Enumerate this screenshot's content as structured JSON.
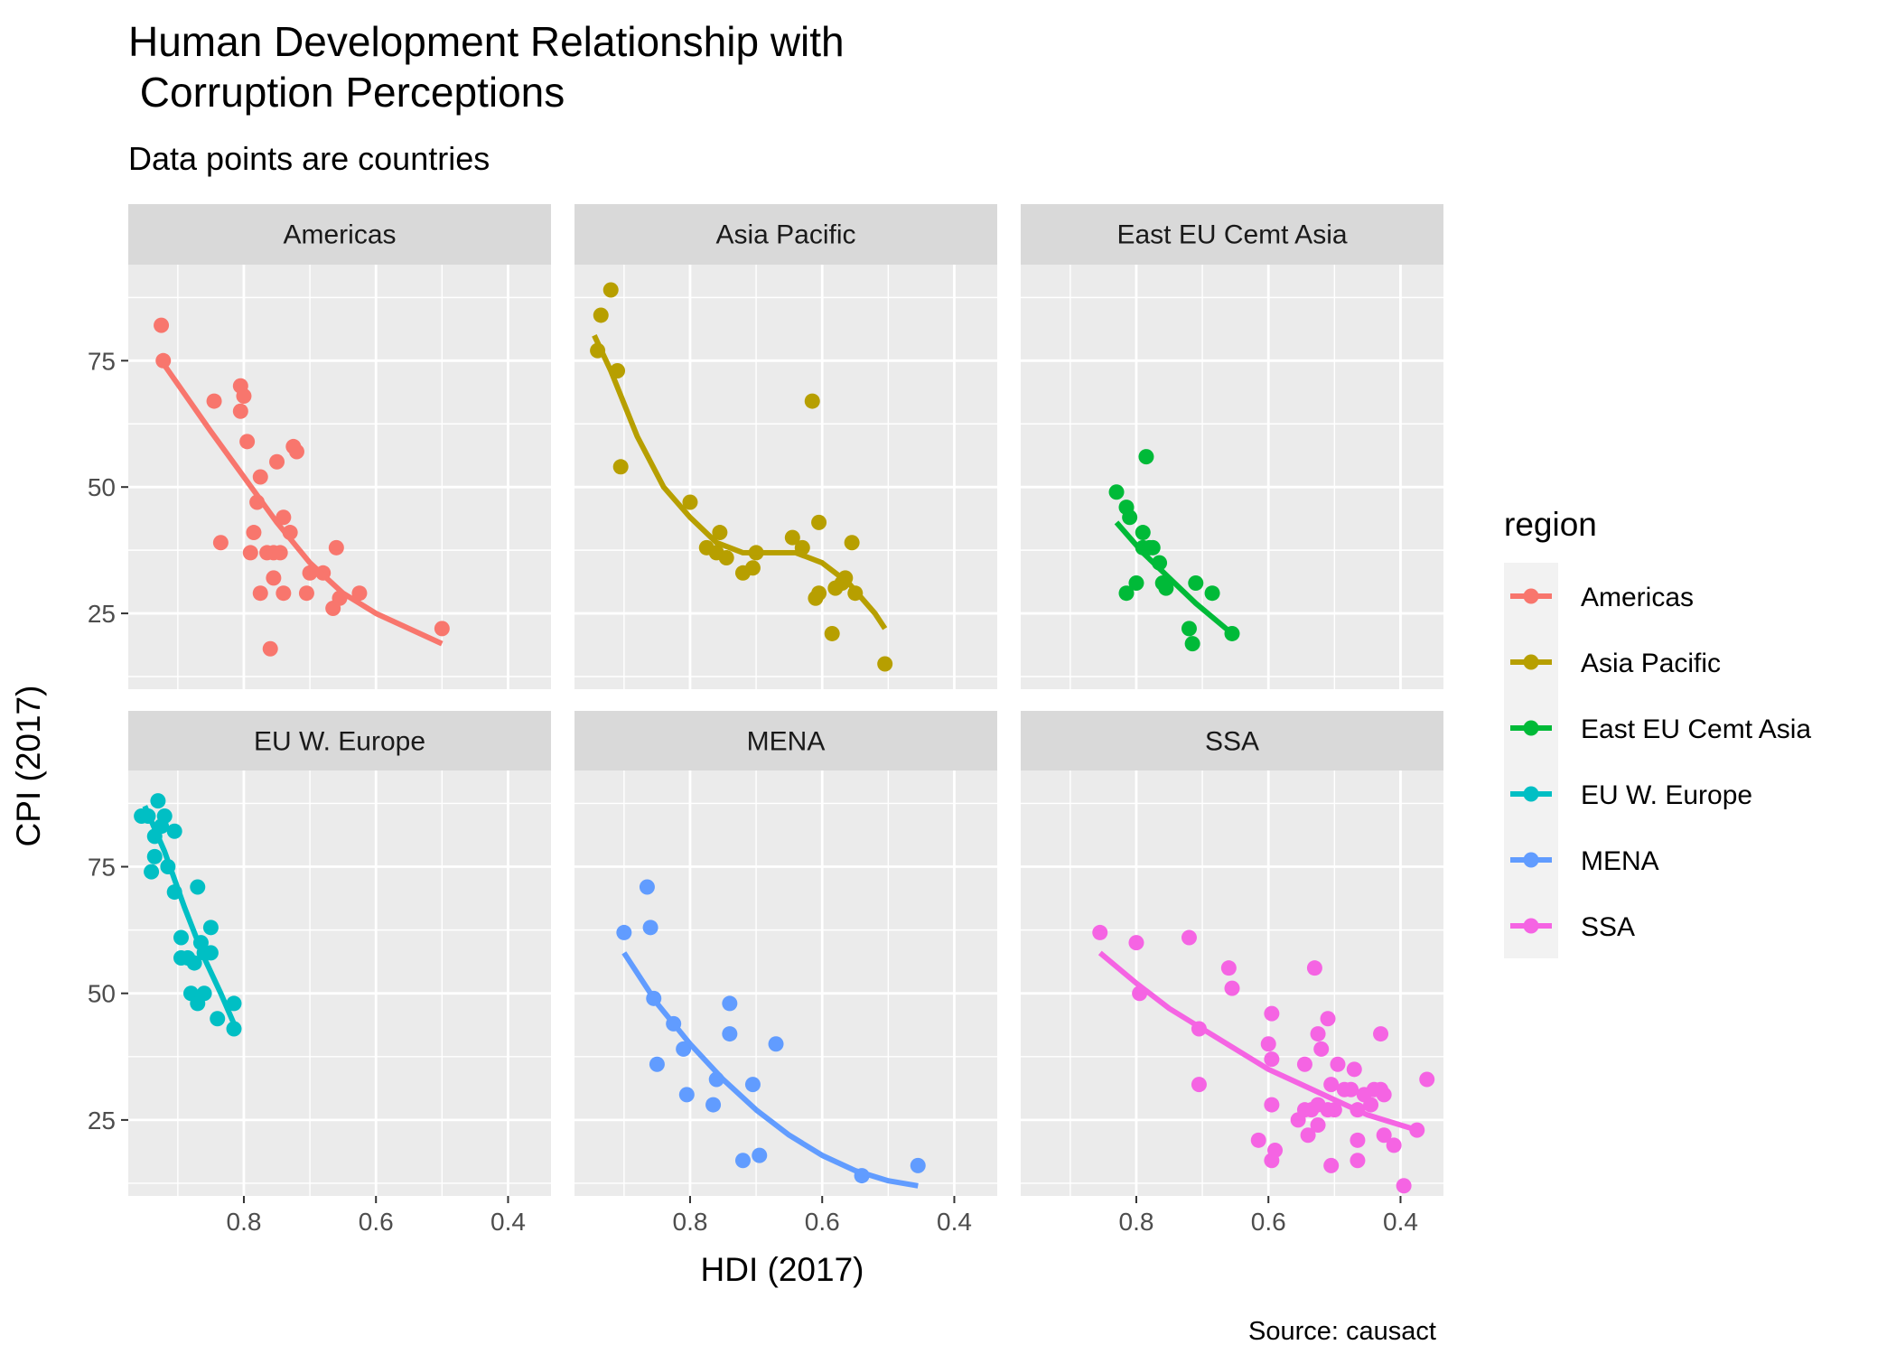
{
  "chart_data": {
    "type": "scatter",
    "title_line1": "Human Development Relationship with",
    "title_line2": " Corruption Perceptions",
    "subtitle": "Data points are countries",
    "xlabel": "HDI (2017)",
    "ylabel": "CPI (2017)",
    "caption": "Source: causact",
    "x_reversed": true,
    "xlim": [
      0.975,
      0.335
    ],
    "ylim": [
      10,
      94
    ],
    "x_ticks": [
      0.8,
      0.6,
      0.4
    ],
    "x_tick_labels": [
      "0.8",
      "0.6",
      "0.4"
    ],
    "y_ticks": [
      25,
      50,
      75
    ],
    "y_tick_labels": [
      "25",
      "50",
      "75"
    ],
    "grid": true,
    "legend": {
      "title": "region",
      "position": "right"
    },
    "series": [
      {
        "name": "Americas",
        "color": "#F8766D",
        "points": [
          [
            0.925,
            82
          ],
          [
            0.922,
            75
          ],
          [
            0.845,
            67
          ],
          [
            0.805,
            70
          ],
          [
            0.805,
            65
          ],
          [
            0.8,
            68
          ],
          [
            0.795,
            59
          ],
          [
            0.835,
            39
          ],
          [
            0.79,
            37
          ],
          [
            0.785,
            41
          ],
          [
            0.78,
            47
          ],
          [
            0.775,
            29
          ],
          [
            0.775,
            52
          ],
          [
            0.765,
            37
          ],
          [
            0.76,
            18
          ],
          [
            0.755,
            37
          ],
          [
            0.755,
            32
          ],
          [
            0.75,
            55
          ],
          [
            0.745,
            37
          ],
          [
            0.74,
            29
          ],
          [
            0.74,
            44
          ],
          [
            0.73,
            41
          ],
          [
            0.725,
            58
          ],
          [
            0.72,
            57
          ],
          [
            0.705,
            29
          ],
          [
            0.7,
            33
          ],
          [
            0.68,
            33
          ],
          [
            0.665,
            26
          ],
          [
            0.66,
            38
          ],
          [
            0.655,
            28
          ],
          [
            0.625,
            29
          ],
          [
            0.5,
            22
          ]
        ],
        "fit": [
          [
            0.925,
            75
          ],
          [
            0.85,
            61
          ],
          [
            0.8,
            52
          ],
          [
            0.75,
            43
          ],
          [
            0.7,
            35
          ],
          [
            0.65,
            29
          ],
          [
            0.6,
            25
          ],
          [
            0.5,
            19
          ]
        ]
      },
      {
        "name": "Asia Pacific",
        "color": "#B79F00",
        "points": [
          [
            0.94,
            77
          ],
          [
            0.935,
            84
          ],
          [
            0.92,
            89
          ],
          [
            0.91,
            73
          ],
          [
            0.905,
            54
          ],
          [
            0.8,
            47
          ],
          [
            0.775,
            38
          ],
          [
            0.76,
            37
          ],
          [
            0.755,
            41
          ],
          [
            0.745,
            36
          ],
          [
            0.72,
            33
          ],
          [
            0.705,
            34
          ],
          [
            0.7,
            37
          ],
          [
            0.645,
            40
          ],
          [
            0.63,
            38
          ],
          [
            0.615,
            67
          ],
          [
            0.61,
            28
          ],
          [
            0.605,
            43
          ],
          [
            0.605,
            29
          ],
          [
            0.585,
            21
          ],
          [
            0.58,
            30
          ],
          [
            0.57,
            31
          ],
          [
            0.565,
            32
          ],
          [
            0.555,
            39
          ],
          [
            0.55,
            29
          ],
          [
            0.505,
            15
          ]
        ],
        "fit": [
          [
            0.945,
            80
          ],
          [
            0.92,
            73
          ],
          [
            0.88,
            60
          ],
          [
            0.84,
            50
          ],
          [
            0.8,
            44
          ],
          [
            0.76,
            39
          ],
          [
            0.72,
            37
          ],
          [
            0.68,
            37
          ],
          [
            0.64,
            37
          ],
          [
            0.6,
            35
          ],
          [
            0.56,
            31
          ],
          [
            0.52,
            25
          ],
          [
            0.505,
            22
          ]
        ]
      },
      {
        "name": "East EU Cemt Asia",
        "color": "#00BA38",
        "points": [
          [
            0.83,
            49
          ],
          [
            0.815,
            46
          ],
          [
            0.81,
            44
          ],
          [
            0.815,
            29
          ],
          [
            0.8,
            31
          ],
          [
            0.79,
            41
          ],
          [
            0.79,
            38
          ],
          [
            0.785,
            56
          ],
          [
            0.78,
            38
          ],
          [
            0.775,
            38
          ],
          [
            0.765,
            35
          ],
          [
            0.76,
            31
          ],
          [
            0.755,
            30
          ],
          [
            0.72,
            22
          ],
          [
            0.715,
            19
          ],
          [
            0.71,
            31
          ],
          [
            0.685,
            29
          ],
          [
            0.655,
            21
          ]
        ],
        "fit": [
          [
            0.83,
            43
          ],
          [
            0.79,
            37
          ],
          [
            0.75,
            32
          ],
          [
            0.71,
            27
          ],
          [
            0.655,
            21
          ]
        ]
      },
      {
        "name": "EU W. Europe",
        "color": "#00BFC4",
        "points": [
          [
            0.955,
            85
          ],
          [
            0.945,
            85
          ],
          [
            0.94,
            74
          ],
          [
            0.935,
            77
          ],
          [
            0.935,
            81
          ],
          [
            0.93,
            88
          ],
          [
            0.925,
            83
          ],
          [
            0.92,
            85
          ],
          [
            0.915,
            75
          ],
          [
            0.905,
            82
          ],
          [
            0.905,
            70
          ],
          [
            0.895,
            61
          ],
          [
            0.895,
            57
          ],
          [
            0.885,
            57
          ],
          [
            0.88,
            50
          ],
          [
            0.875,
            56
          ],
          [
            0.87,
            71
          ],
          [
            0.87,
            48
          ],
          [
            0.865,
            60
          ],
          [
            0.86,
            58
          ],
          [
            0.86,
            50
          ],
          [
            0.85,
            63
          ],
          [
            0.85,
            58
          ],
          [
            0.84,
            45
          ],
          [
            0.815,
            48
          ],
          [
            0.815,
            43
          ]
        ],
        "fit": [
          [
            0.95,
            87
          ],
          [
            0.92,
            78
          ],
          [
            0.89,
            67
          ],
          [
            0.86,
            57
          ],
          [
            0.835,
            50
          ],
          [
            0.815,
            44
          ]
        ]
      },
      {
        "name": "MENA",
        "color": "#619CFF",
        "points": [
          [
            0.9,
            62
          ],
          [
            0.865,
            71
          ],
          [
            0.86,
            63
          ],
          [
            0.855,
            49
          ],
          [
            0.85,
            36
          ],
          [
            0.825,
            44
          ],
          [
            0.81,
            39
          ],
          [
            0.805,
            30
          ],
          [
            0.765,
            28
          ],
          [
            0.76,
            33
          ],
          [
            0.74,
            42
          ],
          [
            0.74,
            48
          ],
          [
            0.72,
            17
          ],
          [
            0.705,
            32
          ],
          [
            0.695,
            18
          ],
          [
            0.67,
            40
          ],
          [
            0.54,
            14
          ],
          [
            0.455,
            16
          ]
        ],
        "fit": [
          [
            0.9,
            58
          ],
          [
            0.85,
            48
          ],
          [
            0.8,
            40
          ],
          [
            0.75,
            33
          ],
          [
            0.7,
            27
          ],
          [
            0.65,
            22
          ],
          [
            0.6,
            18
          ],
          [
            0.55,
            15
          ],
          [
            0.5,
            13
          ],
          [
            0.455,
            12
          ]
        ]
      },
      {
        "name": "SSA",
        "color": "#F564E3",
        "points": [
          [
            0.855,
            62
          ],
          [
            0.8,
            60
          ],
          [
            0.795,
            50
          ],
          [
            0.72,
            61
          ],
          [
            0.705,
            43
          ],
          [
            0.705,
            32
          ],
          [
            0.66,
            55
          ],
          [
            0.655,
            51
          ],
          [
            0.615,
            21
          ],
          [
            0.6,
            40
          ],
          [
            0.595,
            46
          ],
          [
            0.595,
            37
          ],
          [
            0.595,
            28
          ],
          [
            0.595,
            17
          ],
          [
            0.59,
            19
          ],
          [
            0.555,
            25
          ],
          [
            0.545,
            36
          ],
          [
            0.545,
            27
          ],
          [
            0.54,
            22
          ],
          [
            0.535,
            27
          ],
          [
            0.53,
            55
          ],
          [
            0.525,
            42
          ],
          [
            0.525,
            28
          ],
          [
            0.525,
            24
          ],
          [
            0.52,
            39
          ],
          [
            0.51,
            45
          ],
          [
            0.51,
            27
          ],
          [
            0.505,
            32
          ],
          [
            0.505,
            16
          ],
          [
            0.5,
            27
          ],
          [
            0.495,
            36
          ],
          [
            0.485,
            31
          ],
          [
            0.475,
            31
          ],
          [
            0.47,
            35
          ],
          [
            0.465,
            27
          ],
          [
            0.465,
            21
          ],
          [
            0.465,
            17
          ],
          [
            0.455,
            30
          ],
          [
            0.445,
            28
          ],
          [
            0.44,
            31
          ],
          [
            0.43,
            42
          ],
          [
            0.43,
            31
          ],
          [
            0.425,
            22
          ],
          [
            0.425,
            30
          ],
          [
            0.41,
            20
          ],
          [
            0.395,
            12
          ],
          [
            0.375,
            23
          ],
          [
            0.36,
            33
          ]
        ],
        "fit": [
          [
            0.855,
            58
          ],
          [
            0.8,
            52
          ],
          [
            0.75,
            47
          ],
          [
            0.7,
            43
          ],
          [
            0.65,
            39
          ],
          [
            0.6,
            35
          ],
          [
            0.55,
            32
          ],
          [
            0.5,
            29
          ],
          [
            0.45,
            26
          ],
          [
            0.4,
            24
          ],
          [
            0.375,
            23
          ]
        ]
      }
    ]
  }
}
